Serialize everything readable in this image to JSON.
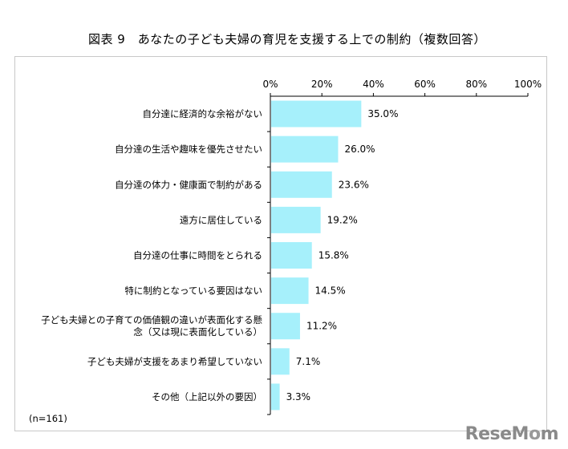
{
  "chart_data": {
    "type": "bar",
    "orientation": "horizontal",
    "title": "図表 9　あなたの子ども夫婦の育児を支援する上での制約（複数回答）",
    "categories": [
      [
        "自分達に経済的な余裕がない"
      ],
      [
        "自分達の生活や趣味を優先させたい"
      ],
      [
        "自分達の体力・健康面で制約がある"
      ],
      [
        "遠方に居住している"
      ],
      [
        "自分達の仕事に時間をとられる"
      ],
      [
        "特に制約となっている要因はない"
      ],
      [
        "子ども夫婦との子育ての価値観の違いが表面化する懸",
        "念（又は現に表面化している）"
      ],
      [
        "子ども夫婦が支援をあまり希望していない"
      ],
      [
        "その他（上記以外の要因）"
      ]
    ],
    "values": [
      35.0,
      26.0,
      23.6,
      19.2,
      15.8,
      14.5,
      11.2,
      7.1,
      3.3
    ],
    "value_labels": [
      "35.0%",
      "26.0%",
      "23.6%",
      "19.2%",
      "15.8%",
      "14.5%",
      "11.2%",
      "7.1%",
      "3.3%"
    ],
    "xlim": [
      0,
      100
    ],
    "ticks": [
      0,
      20,
      40,
      60,
      80,
      100
    ],
    "tick_labels": [
      "0%",
      "20%",
      "40%",
      "60%",
      "80%",
      "100%"
    ],
    "bar_color": "#a6f0fb",
    "grid": false,
    "note": "(n=161)"
  },
  "watermark": "ReseMom"
}
